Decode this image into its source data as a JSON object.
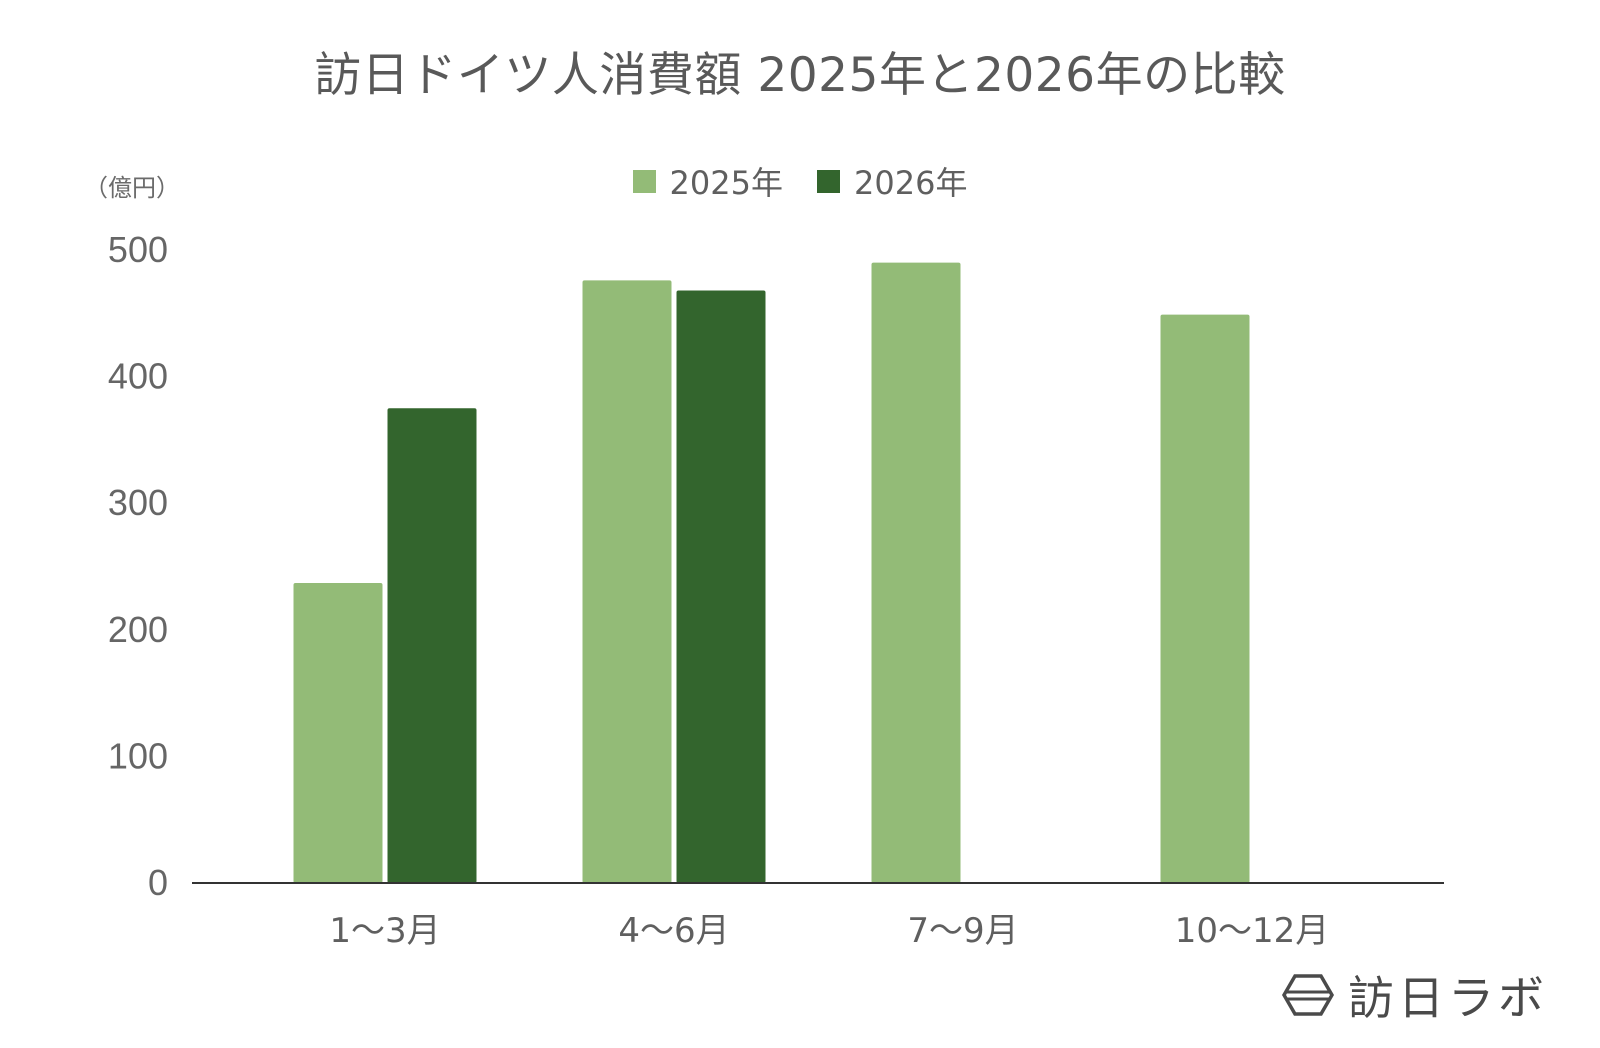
{
  "chart_data": {
    "type": "bar",
    "title": "訪日ドイツ人消費額 2025年と2026年の比較",
    "y_unit": "（億円）",
    "categories": [
      "1〜3月",
      "4〜6月",
      "7〜9月",
      "10〜12月"
    ],
    "series": [
      {
        "name": "2025年",
        "color": "#93bb77",
        "values": [
          237,
          476,
          490,
          449
        ]
      },
      {
        "name": "2026年",
        "color": "#33652d",
        "values": [
          375,
          468,
          null,
          null
        ]
      }
    ],
    "ylim": [
      0,
      500
    ],
    "yticks": [
      0,
      100,
      200,
      300,
      400,
      500
    ],
    "grid": false,
    "legend_position": "top-center"
  },
  "logo": {
    "text": "訪日ラボ",
    "icon": "hexagon-logo-icon"
  }
}
